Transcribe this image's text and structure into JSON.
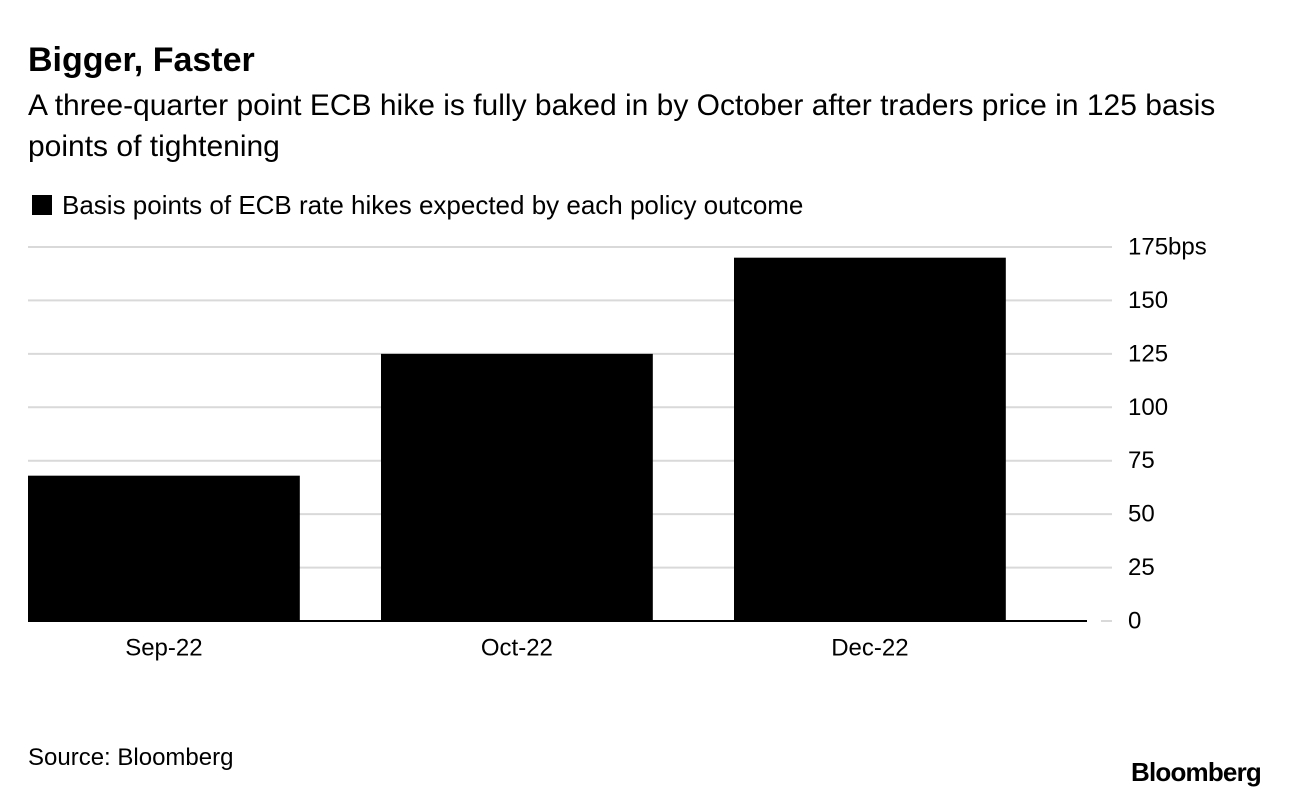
{
  "title": "Bigger, Faster",
  "subtitle": "A three-quarter point ECB hike is fully baked in by October after traders price in 125 basis points of tightening",
  "source": "Source: Bloomberg",
  "logo": "Bloomberg",
  "colors": {
    "bar": "#000000",
    "grid": "#d9d9d9",
    "text": "#000000"
  },
  "chart_data": {
    "type": "bar",
    "categories": [
      "Sep-22",
      "Oct-22",
      "Dec-22"
    ],
    "series": [
      {
        "name": "Basis points of ECB rate hikes expected by each policy outcome",
        "values": [
          68,
          125,
          170
        ]
      }
    ],
    "ylim": [
      0,
      175
    ],
    "yticks": [
      0,
      25,
      50,
      75,
      100,
      125,
      150,
      175
    ],
    "ytick_labels": [
      "0",
      "25",
      "50",
      "75",
      "100",
      "125",
      "150",
      "175bps"
    ],
    "y_axis_position": "right",
    "grid": true,
    "legend_position": "top-left",
    "xlabel": "",
    "ylabel": ""
  }
}
